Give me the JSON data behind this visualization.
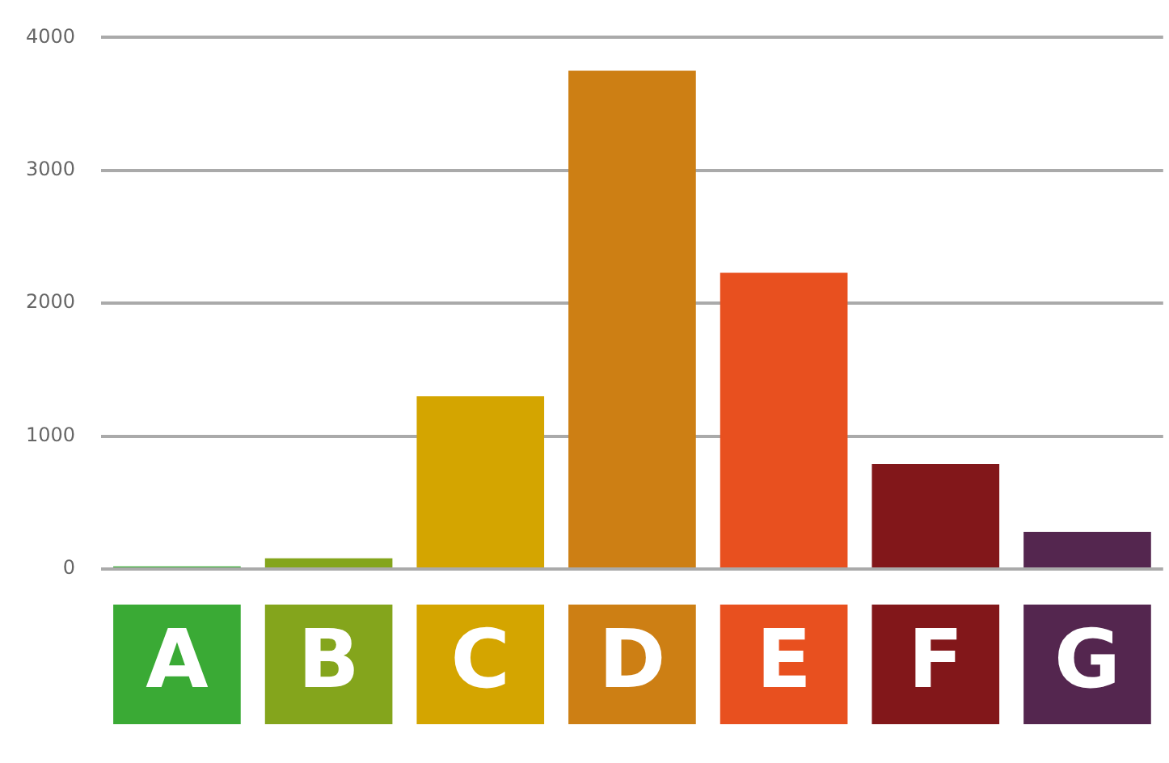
{
  "chart_data": {
    "type": "bar",
    "categories": [
      "A",
      "B",
      "C",
      "D",
      "E",
      "F",
      "G"
    ],
    "values": [
      20,
      80,
      1300,
      3750,
      2230,
      790,
      280
    ],
    "colors": [
      "#3aaa35",
      "#84a51c",
      "#d4a500",
      "#cd7f14",
      "#e8501f",
      "#82171a",
      "#54264f"
    ],
    "ylim": [
      0,
      4000
    ],
    "yticks": [
      0,
      1000,
      2000,
      3000,
      4000
    ],
    "grid": "y",
    "legend": false
  }
}
